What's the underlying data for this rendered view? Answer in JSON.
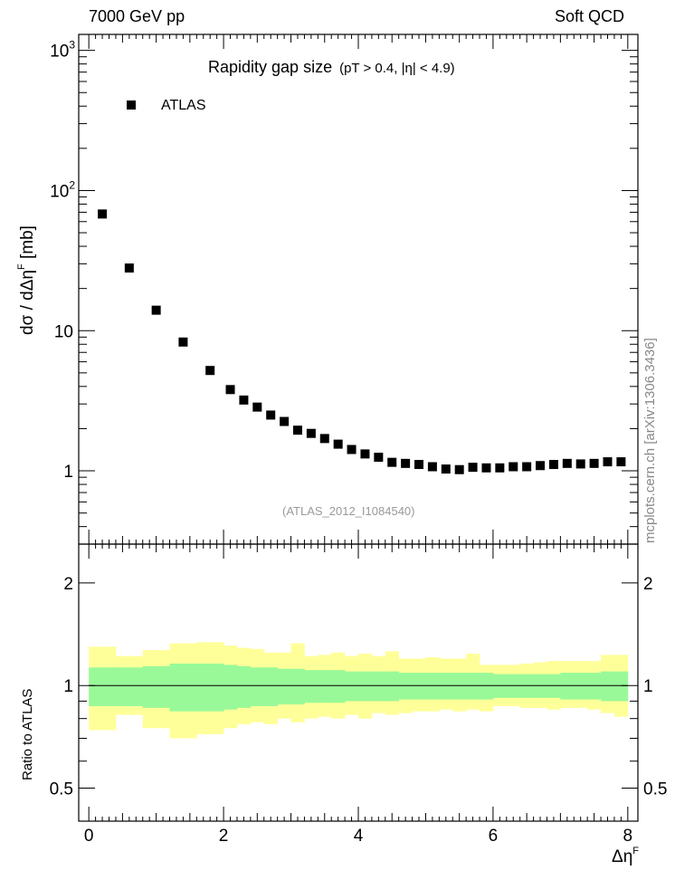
{
  "header": {
    "left": "7000 GeV pp",
    "right": "Soft QCD"
  },
  "title": {
    "main": "Rapidity gap size",
    "cuts": "(pT > 0.4, |η| < 4.9)"
  },
  "legend": {
    "label": "ATLAS"
  },
  "analysis_ref": "(ATLAS_2012_I1084540)",
  "watermark": "mcplots.cern.ch [arXiv:1306.3436]",
  "axes": {
    "main_ylabel": "dσ / dΔη",
    "main_ylabel_sup": "F",
    "main_ylabel_unit": " [mb]",
    "ratio_ylabel": "Ratio to ATLAS",
    "xlabel": "Δη",
    "xlabel_sup": "F"
  },
  "colors": {
    "marker": "#000000",
    "band_inner": "#99f999",
    "band_outer": "#ffff99"
  },
  "chart_data": [
    {
      "type": "scatter",
      "panel": "main",
      "x": [
        0.2,
        0.6,
        1.0,
        1.4,
        1.8,
        2.1,
        2.3,
        2.5,
        2.7,
        2.9,
        3.1,
        3.3,
        3.5,
        3.7,
        3.9,
        4.1,
        4.3,
        4.5,
        4.7,
        4.9,
        5.1,
        5.3,
        5.5,
        5.7,
        5.9,
        6.1,
        6.3,
        6.5,
        6.7,
        6.9,
        7.1,
        7.3,
        7.5,
        7.7,
        7.9
      ],
      "series": [
        {
          "name": "ATLAS",
          "values": [
            68,
            28,
            14,
            8.3,
            5.2,
            3.8,
            3.2,
            2.85,
            2.5,
            2.25,
            1.95,
            1.85,
            1.7,
            1.55,
            1.42,
            1.32,
            1.25,
            1.15,
            1.13,
            1.11,
            1.07,
            1.03,
            1.02,
            1.06,
            1.05,
            1.05,
            1.07,
            1.07,
            1.09,
            1.11,
            1.13,
            1.12,
            1.13,
            1.16,
            1.16
          ]
        }
      ],
      "xlim": [
        -0.15,
        8.15
      ],
      "ylim": [
        0.3,
        1300
      ],
      "yscale": "log",
      "ytick_labels": [
        "1",
        "10",
        "10^2",
        "10^3"
      ],
      "xtick_labels": [
        "0",
        "2",
        "4",
        "6",
        "8"
      ]
    },
    {
      "type": "area",
      "panel": "ratio",
      "x_edges": [
        0.0,
        0.4,
        0.8,
        1.2,
        1.6,
        2.0,
        2.2,
        2.4,
        2.6,
        2.8,
        3.0,
        3.2,
        3.4,
        3.6,
        3.8,
        4.0,
        4.2,
        4.4,
        4.6,
        4.8,
        5.0,
        5.2,
        5.4,
        5.6,
        5.8,
        6.0,
        6.2,
        6.4,
        6.6,
        6.8,
        7.0,
        7.2,
        7.4,
        7.6,
        7.8,
        8.0
      ],
      "series": [
        {
          "band": "inner",
          "lower": [
            0.87,
            0.87,
            0.86,
            0.84,
            0.84,
            0.85,
            0.86,
            0.87,
            0.87,
            0.88,
            0.88,
            0.89,
            0.89,
            0.89,
            0.9,
            0.9,
            0.9,
            0.9,
            0.91,
            0.91,
            0.91,
            0.91,
            0.91,
            0.91,
            0.91,
            0.92,
            0.92,
            0.92,
            0.92,
            0.92,
            0.91,
            0.91,
            0.91,
            0.9,
            0.9
          ],
          "upper": [
            1.13,
            1.13,
            1.14,
            1.16,
            1.16,
            1.15,
            1.14,
            1.13,
            1.13,
            1.12,
            1.12,
            1.11,
            1.11,
            1.11,
            1.1,
            1.1,
            1.1,
            1.1,
            1.09,
            1.09,
            1.09,
            1.09,
            1.09,
            1.09,
            1.09,
            1.08,
            1.08,
            1.08,
            1.08,
            1.08,
            1.09,
            1.09,
            1.09,
            1.1,
            1.1
          ]
        },
        {
          "band": "outer",
          "lower": [
            0.74,
            0.82,
            0.75,
            0.7,
            0.72,
            0.75,
            0.77,
            0.78,
            0.77,
            0.8,
            0.78,
            0.8,
            0.81,
            0.8,
            0.82,
            0.8,
            0.83,
            0.82,
            0.83,
            0.84,
            0.84,
            0.85,
            0.84,
            0.85,
            0.84,
            0.87,
            0.87,
            0.86,
            0.86,
            0.85,
            0.86,
            0.86,
            0.85,
            0.83,
            0.81
          ],
          "upper": [
            1.3,
            1.22,
            1.27,
            1.33,
            1.34,
            1.31,
            1.29,
            1.28,
            1.25,
            1.25,
            1.33,
            1.22,
            1.23,
            1.25,
            1.22,
            1.24,
            1.22,
            1.26,
            1.2,
            1.2,
            1.21,
            1.2,
            1.2,
            1.24,
            1.15,
            1.15,
            1.15,
            1.16,
            1.17,
            1.18,
            1.18,
            1.18,
            1.18,
            1.23,
            1.23
          ]
        }
      ],
      "reference_line": 1.0,
      "xlim": [
        -0.15,
        8.15
      ],
      "ylim": [
        0.4,
        2.6
      ],
      "yscale": "log",
      "ytick_labels": [
        "0.5",
        "1",
        "2"
      ],
      "xtick_labels": [
        "0",
        "2",
        "4",
        "6",
        "8"
      ]
    }
  ]
}
